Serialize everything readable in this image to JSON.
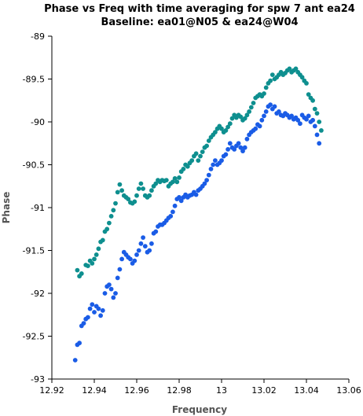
{
  "chart_data": {
    "type": "scatter",
    "title": "Phase vs Freq with time averaging for spw 7 ant ea24",
    "subtitle": "Baseline: ea01@N05 & ea24@W04",
    "xlabel": "Frequency",
    "ylabel": "Phase",
    "xlim": [
      12.92,
      13.06
    ],
    "ylim": [
      -93,
      -89
    ],
    "xticks": [
      "12.92",
      "12.94",
      "12.96",
      "12.98",
      "13",
      "13.02",
      "13.04",
      "13.06"
    ],
    "yticks": [
      "-89",
      "-89.5",
      "-90",
      "-90.5",
      "-91",
      "-91.5",
      "-92",
      "-92.5",
      "-93"
    ],
    "grid": false,
    "series": [
      {
        "color": "#0e8f8f",
        "points": [
          [
            12.932,
            -91.73
          ],
          [
            12.933,
            -91.8
          ],
          [
            12.934,
            -91.77
          ],
          [
            12.936,
            -91.67
          ],
          [
            12.937,
            -91.68
          ],
          [
            12.938,
            -91.62
          ],
          [
            12.939,
            -91.65
          ],
          [
            12.94,
            -91.6
          ],
          [
            12.941,
            -91.55
          ],
          [
            12.942,
            -91.48
          ],
          [
            12.943,
            -91.4
          ],
          [
            12.944,
            -91.38
          ],
          [
            12.945,
            -91.28
          ],
          [
            12.946,
            -91.25
          ],
          [
            12.947,
            -91.18
          ],
          [
            12.948,
            -91.1
          ],
          [
            12.949,
            -91.03
          ],
          [
            12.95,
            -90.95
          ],
          [
            12.951,
            -90.82
          ],
          [
            12.952,
            -90.73
          ],
          [
            12.953,
            -90.8
          ],
          [
            12.954,
            -90.86
          ],
          [
            12.955,
            -90.88
          ],
          [
            12.956,
            -90.9
          ],
          [
            12.957,
            -90.94
          ],
          [
            12.958,
            -90.95
          ],
          [
            12.959,
            -90.93
          ],
          [
            12.96,
            -90.86
          ],
          [
            12.961,
            -90.78
          ],
          [
            12.962,
            -90.72
          ],
          [
            12.963,
            -90.78
          ],
          [
            12.964,
            -90.86
          ],
          [
            12.965,
            -90.88
          ],
          [
            12.966,
            -90.86
          ],
          [
            12.967,
            -90.8
          ],
          [
            12.968,
            -90.75
          ],
          [
            12.969,
            -90.72
          ],
          [
            12.97,
            -90.68
          ],
          [
            12.971,
            -90.7
          ],
          [
            12.972,
            -90.68
          ],
          [
            12.973,
            -90.69
          ],
          [
            12.974,
            -90.68
          ],
          [
            12.975,
            -90.75
          ],
          [
            12.976,
            -90.72
          ],
          [
            12.977,
            -90.7
          ],
          [
            12.978,
            -90.66
          ],
          [
            12.979,
            -90.7
          ],
          [
            12.98,
            -90.65
          ],
          [
            12.981,
            -90.58
          ],
          [
            12.982,
            -90.55
          ],
          [
            12.983,
            -90.5
          ],
          [
            12.984,
            -90.52
          ],
          [
            12.985,
            -90.48
          ],
          [
            12.986,
            -90.45
          ],
          [
            12.987,
            -90.4
          ],
          [
            12.988,
            -90.37
          ],
          [
            12.989,
            -90.45
          ],
          [
            12.99,
            -90.4
          ],
          [
            12.991,
            -90.35
          ],
          [
            12.992,
            -90.3
          ],
          [
            12.993,
            -90.28
          ],
          [
            12.994,
            -90.22
          ],
          [
            12.995,
            -90.18
          ],
          [
            12.996,
            -90.15
          ],
          [
            12.997,
            -90.12
          ],
          [
            12.998,
            -90.08
          ],
          [
            12.999,
            -90.05
          ],
          [
            13.0,
            -90.08
          ],
          [
            13.001,
            -90.12
          ],
          [
            13.002,
            -90.1
          ],
          [
            13.003,
            -90.06
          ],
          [
            13.004,
            -90.02
          ],
          [
            13.005,
            -89.96
          ],
          [
            13.006,
            -89.92
          ],
          [
            13.007,
            -89.95
          ],
          [
            13.008,
            -89.92
          ],
          [
            13.009,
            -89.94
          ],
          [
            13.01,
            -89.98
          ],
          [
            13.011,
            -89.96
          ],
          [
            13.012,
            -89.92
          ],
          [
            13.013,
            -89.88
          ],
          [
            13.014,
            -89.83
          ],
          [
            13.015,
            -89.78
          ],
          [
            13.016,
            -89.72
          ],
          [
            13.017,
            -89.7
          ],
          [
            13.018,
            -89.68
          ],
          [
            13.019,
            -89.7
          ],
          [
            13.02,
            -89.67
          ],
          [
            13.021,
            -89.6
          ],
          [
            13.022,
            -89.55
          ],
          [
            13.023,
            -89.52
          ],
          [
            13.024,
            -89.45
          ],
          [
            13.025,
            -89.5
          ],
          [
            13.026,
            -89.48
          ],
          [
            13.027,
            -89.45
          ],
          [
            13.028,
            -89.42
          ],
          [
            13.029,
            -89.45
          ],
          [
            13.03,
            -89.43
          ],
          [
            13.031,
            -89.4
          ],
          [
            13.032,
            -89.38
          ],
          [
            13.033,
            -89.42
          ],
          [
            13.034,
            -89.4
          ],
          [
            13.035,
            -89.38
          ],
          [
            13.036,
            -89.42
          ],
          [
            13.037,
            -89.45
          ],
          [
            13.038,
            -89.48
          ],
          [
            13.039,
            -89.52
          ],
          [
            13.04,
            -89.55
          ],
          [
            13.041,
            -89.68
          ],
          [
            13.042,
            -89.72
          ],
          [
            13.043,
            -89.75
          ],
          [
            13.044,
            -89.85
          ],
          [
            13.045,
            -89.9
          ],
          [
            13.046,
            -90.0
          ],
          [
            13.047,
            -90.1
          ]
        ]
      },
      {
        "color": "#1a5ce6",
        "points": [
          [
            12.931,
            -92.78
          ],
          [
            12.932,
            -92.6
          ],
          [
            12.933,
            -92.58
          ],
          [
            12.934,
            -92.38
          ],
          [
            12.935,
            -92.35
          ],
          [
            12.936,
            -92.3
          ],
          [
            12.937,
            -92.28
          ],
          [
            12.938,
            -92.18
          ],
          [
            12.939,
            -92.13
          ],
          [
            12.94,
            -92.22
          ],
          [
            12.941,
            -92.15
          ],
          [
            12.942,
            -92.18
          ],
          [
            12.943,
            -92.26
          ],
          [
            12.944,
            -92.2
          ],
          [
            12.945,
            -92.0
          ],
          [
            12.946,
            -91.92
          ],
          [
            12.947,
            -91.9
          ],
          [
            12.948,
            -91.95
          ],
          [
            12.949,
            -92.05
          ],
          [
            12.95,
            -92.0
          ],
          [
            12.951,
            -91.82
          ],
          [
            12.952,
            -91.72
          ],
          [
            12.953,
            -91.6
          ],
          [
            12.954,
            -91.52
          ],
          [
            12.955,
            -91.55
          ],
          [
            12.956,
            -91.58
          ],
          [
            12.957,
            -91.6
          ],
          [
            12.958,
            -91.65
          ],
          [
            12.959,
            -91.62
          ],
          [
            12.96,
            -91.55
          ],
          [
            12.961,
            -91.5
          ],
          [
            12.962,
            -91.42
          ],
          [
            12.963,
            -91.35
          ],
          [
            12.964,
            -91.45
          ],
          [
            12.965,
            -91.52
          ],
          [
            12.966,
            -91.5
          ],
          [
            12.967,
            -91.42
          ],
          [
            12.968,
            -91.3
          ],
          [
            12.969,
            -91.28
          ],
          [
            12.97,
            -91.22
          ],
          [
            12.971,
            -91.2
          ],
          [
            12.972,
            -91.2
          ],
          [
            12.973,
            -91.18
          ],
          [
            12.974,
            -91.15
          ],
          [
            12.975,
            -91.12
          ],
          [
            12.976,
            -91.1
          ],
          [
            12.977,
            -91.05
          ],
          [
            12.978,
            -90.98
          ],
          [
            12.979,
            -90.9
          ],
          [
            12.98,
            -90.88
          ],
          [
            12.981,
            -90.92
          ],
          [
            12.982,
            -90.88
          ],
          [
            12.983,
            -90.85
          ],
          [
            12.984,
            -90.88
          ],
          [
            12.985,
            -90.86
          ],
          [
            12.986,
            -90.85
          ],
          [
            12.987,
            -90.82
          ],
          [
            12.988,
            -90.85
          ],
          [
            12.989,
            -90.8
          ],
          [
            12.99,
            -90.78
          ],
          [
            12.991,
            -90.75
          ],
          [
            12.992,
            -90.72
          ],
          [
            12.993,
            -90.68
          ],
          [
            12.994,
            -90.62
          ],
          [
            12.995,
            -90.55
          ],
          [
            12.996,
            -90.5
          ],
          [
            12.997,
            -90.45
          ],
          [
            12.998,
            -90.5
          ],
          [
            12.999,
            -90.48
          ],
          [
            13.0,
            -90.45
          ],
          [
            13.001,
            -90.4
          ],
          [
            13.002,
            -90.38
          ],
          [
            13.003,
            -90.32
          ],
          [
            13.004,
            -90.25
          ],
          [
            13.005,
            -90.3
          ],
          [
            13.006,
            -90.32
          ],
          [
            13.007,
            -90.28
          ],
          [
            13.008,
            -90.25
          ],
          [
            13.009,
            -90.3
          ],
          [
            13.01,
            -90.34
          ],
          [
            13.011,
            -90.3
          ],
          [
            13.012,
            -90.2
          ],
          [
            13.013,
            -90.15
          ],
          [
            13.014,
            -90.12
          ],
          [
            13.015,
            -90.1
          ],
          [
            13.016,
            -90.08
          ],
          [
            13.017,
            -90.03
          ],
          [
            13.018,
            -90.05
          ],
          [
            13.019,
            -89.98
          ],
          [
            13.02,
            -89.93
          ],
          [
            13.021,
            -89.88
          ],
          [
            13.022,
            -89.82
          ],
          [
            13.023,
            -89.8
          ],
          [
            13.024,
            -89.85
          ],
          [
            13.025,
            -89.82
          ],
          [
            13.026,
            -89.9
          ],
          [
            13.027,
            -89.88
          ],
          [
            13.028,
            -89.92
          ],
          [
            13.029,
            -89.93
          ],
          [
            13.03,
            -89.9
          ],
          [
            13.031,
            -89.92
          ],
          [
            13.032,
            -89.95
          ],
          [
            13.033,
            -89.93
          ],
          [
            13.034,
            -89.97
          ],
          [
            13.035,
            -89.95
          ],
          [
            13.036,
            -89.98
          ],
          [
            13.037,
            -90.02
          ],
          [
            13.038,
            -89.92
          ],
          [
            13.039,
            -89.95
          ],
          [
            13.04,
            -89.97
          ],
          [
            13.041,
            -89.93
          ],
          [
            13.042,
            -90.0
          ],
          [
            13.043,
            -89.98
          ],
          [
            13.044,
            -90.05
          ],
          [
            13.045,
            -90.15
          ],
          [
            13.046,
            -90.25
          ]
        ]
      }
    ]
  }
}
